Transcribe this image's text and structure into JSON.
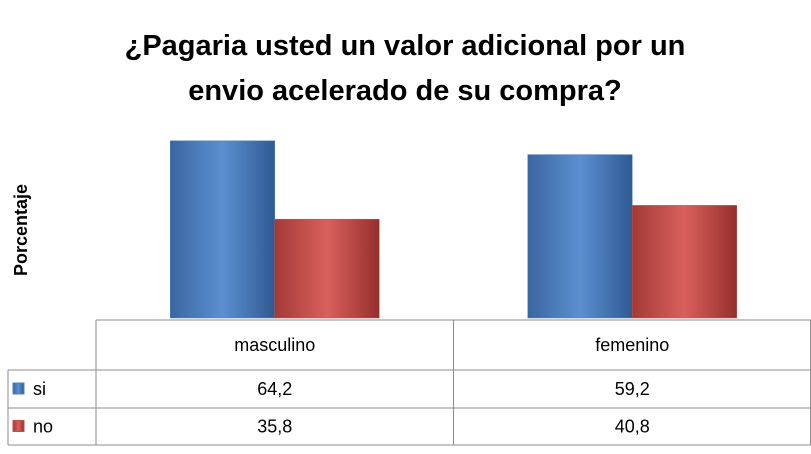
{
  "chart_data": {
    "type": "bar",
    "title": "¿Pagaria usted un valor adicional por un envio acelerado de su compra?",
    "ylabel": "Porcentaje",
    "categories": [
      "masculino",
      "femenino"
    ],
    "series": [
      {
        "name": "si",
        "color": "#4f81bd",
        "values": [
          64.2,
          59.2
        ],
        "value_labels": [
          "64,2",
          "59,2"
        ]
      },
      {
        "name": "no",
        "color": "#c0504d",
        "values": [
          35.8,
          40.8
        ],
        "value_labels": [
          "35,8",
          "40,8"
        ]
      }
    ],
    "ylim": [
      0,
      70
    ]
  }
}
